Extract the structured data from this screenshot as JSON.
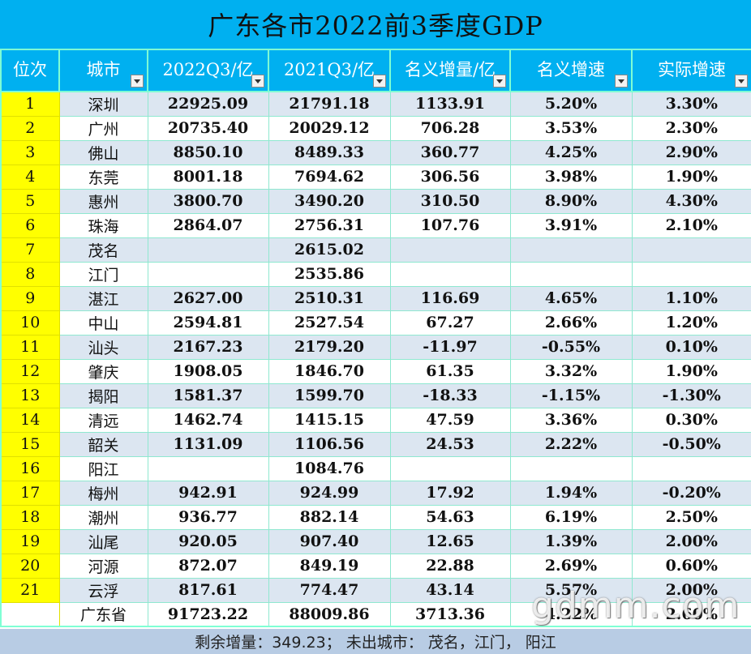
{
  "title": "广东各市2022前3季度GDP",
  "headers": [
    "位次",
    "城市",
    "2022Q3/亿",
    "2021Q3/亿",
    "名义增量/亿",
    "名义增速",
    "实际增速"
  ],
  "rows": [
    {
      "rank": "1",
      "city": "深圳",
      "q3_2022": "22925.09",
      "q3_2021": "21791.18",
      "increment": "1133.91",
      "nominal": "5.20%",
      "real": "3.30%"
    },
    {
      "rank": "2",
      "city": "广州",
      "q3_2022": "20735.40",
      "q3_2021": "20029.12",
      "increment": "706.28",
      "nominal": "3.53%",
      "real": "2.30%"
    },
    {
      "rank": "3",
      "city": "佛山",
      "q3_2022": "8850.10",
      "q3_2021": "8489.33",
      "increment": "360.77",
      "nominal": "4.25%",
      "real": "2.90%"
    },
    {
      "rank": "4",
      "city": "东莞",
      "q3_2022": "8001.18",
      "q3_2021": "7694.62",
      "increment": "306.56",
      "nominal": "3.98%",
      "real": "1.90%"
    },
    {
      "rank": "5",
      "city": "惠州",
      "q3_2022": "3800.70",
      "q3_2021": "3490.20",
      "increment": "310.50",
      "nominal": "8.90%",
      "real": "4.30%"
    },
    {
      "rank": "6",
      "city": "珠海",
      "q3_2022": "2864.07",
      "q3_2021": "2756.31",
      "increment": "107.76",
      "nominal": "3.91%",
      "real": "2.10%"
    },
    {
      "rank": "7",
      "city": "茂名",
      "q3_2022": "",
      "q3_2021": "2615.02",
      "increment": "",
      "nominal": "",
      "real": ""
    },
    {
      "rank": "8",
      "city": "江门",
      "q3_2022": "",
      "q3_2021": "2535.86",
      "increment": "",
      "nominal": "",
      "real": ""
    },
    {
      "rank": "9",
      "city": "湛江",
      "q3_2022": "2627.00",
      "q3_2021": "2510.31",
      "increment": "116.69",
      "nominal": "4.65%",
      "real": "1.10%"
    },
    {
      "rank": "10",
      "city": "中山",
      "q3_2022": "2594.81",
      "q3_2021": "2527.54",
      "increment": "67.27",
      "nominal": "2.66%",
      "real": "1.20%"
    },
    {
      "rank": "11",
      "city": "汕头",
      "q3_2022": "2167.23",
      "q3_2021": "2179.20",
      "increment": "-11.97",
      "nominal": "-0.55%",
      "real": "0.10%"
    },
    {
      "rank": "12",
      "city": "肇庆",
      "q3_2022": "1908.05",
      "q3_2021": "1846.70",
      "increment": "61.35",
      "nominal": "3.32%",
      "real": "1.90%"
    },
    {
      "rank": "13",
      "city": "揭阳",
      "q3_2022": "1581.37",
      "q3_2021": "1599.70",
      "increment": "-18.33",
      "nominal": "-1.15%",
      "real": "-1.30%"
    },
    {
      "rank": "14",
      "city": "清远",
      "q3_2022": "1462.74",
      "q3_2021": "1415.15",
      "increment": "47.59",
      "nominal": "3.36%",
      "real": "0.30%"
    },
    {
      "rank": "15",
      "city": "韶关",
      "q3_2022": "1131.09",
      "q3_2021": "1106.56",
      "increment": "24.53",
      "nominal": "2.22%",
      "real": "-0.50%"
    },
    {
      "rank": "16",
      "city": "阳江",
      "q3_2022": "",
      "q3_2021": "1084.76",
      "increment": "",
      "nominal": "",
      "real": ""
    },
    {
      "rank": "17",
      "city": "梅州",
      "q3_2022": "942.91",
      "q3_2021": "924.99",
      "increment": "17.92",
      "nominal": "1.94%",
      "real": "-0.20%"
    },
    {
      "rank": "18",
      "city": "潮州",
      "q3_2022": "936.77",
      "q3_2021": "882.14",
      "increment": "54.63",
      "nominal": "6.19%",
      "real": "2.50%"
    },
    {
      "rank": "19",
      "city": "汕尾",
      "q3_2022": "920.05",
      "q3_2021": "907.40",
      "increment": "12.65",
      "nominal": "1.39%",
      "real": "2.00%"
    },
    {
      "rank": "20",
      "city": "河源",
      "q3_2022": "872.07",
      "q3_2021": "849.19",
      "increment": "22.88",
      "nominal": "2.69%",
      "real": "0.60%"
    },
    {
      "rank": "21",
      "city": "云浮",
      "q3_2022": "817.61",
      "q3_2021": "774.47",
      "increment": "43.14",
      "nominal": "5.57%",
      "real": "2.00%"
    }
  ],
  "total": {
    "rank": "",
    "city": "广东省",
    "q3_2022": "91723.22",
    "q3_2021": "88009.86",
    "increment": "3713.36",
    "nominal": "4.22%",
    "real": "2.60%"
  },
  "footer": "剩余增量：349.23；  未出城市：  茂名，江门，  阳江",
  "watermark": "gdmm.com",
  "colors": {
    "header": "#00b0f0",
    "rank_column": "#ffff00",
    "band": "#dce6f1",
    "footer": "#b8cce4"
  }
}
